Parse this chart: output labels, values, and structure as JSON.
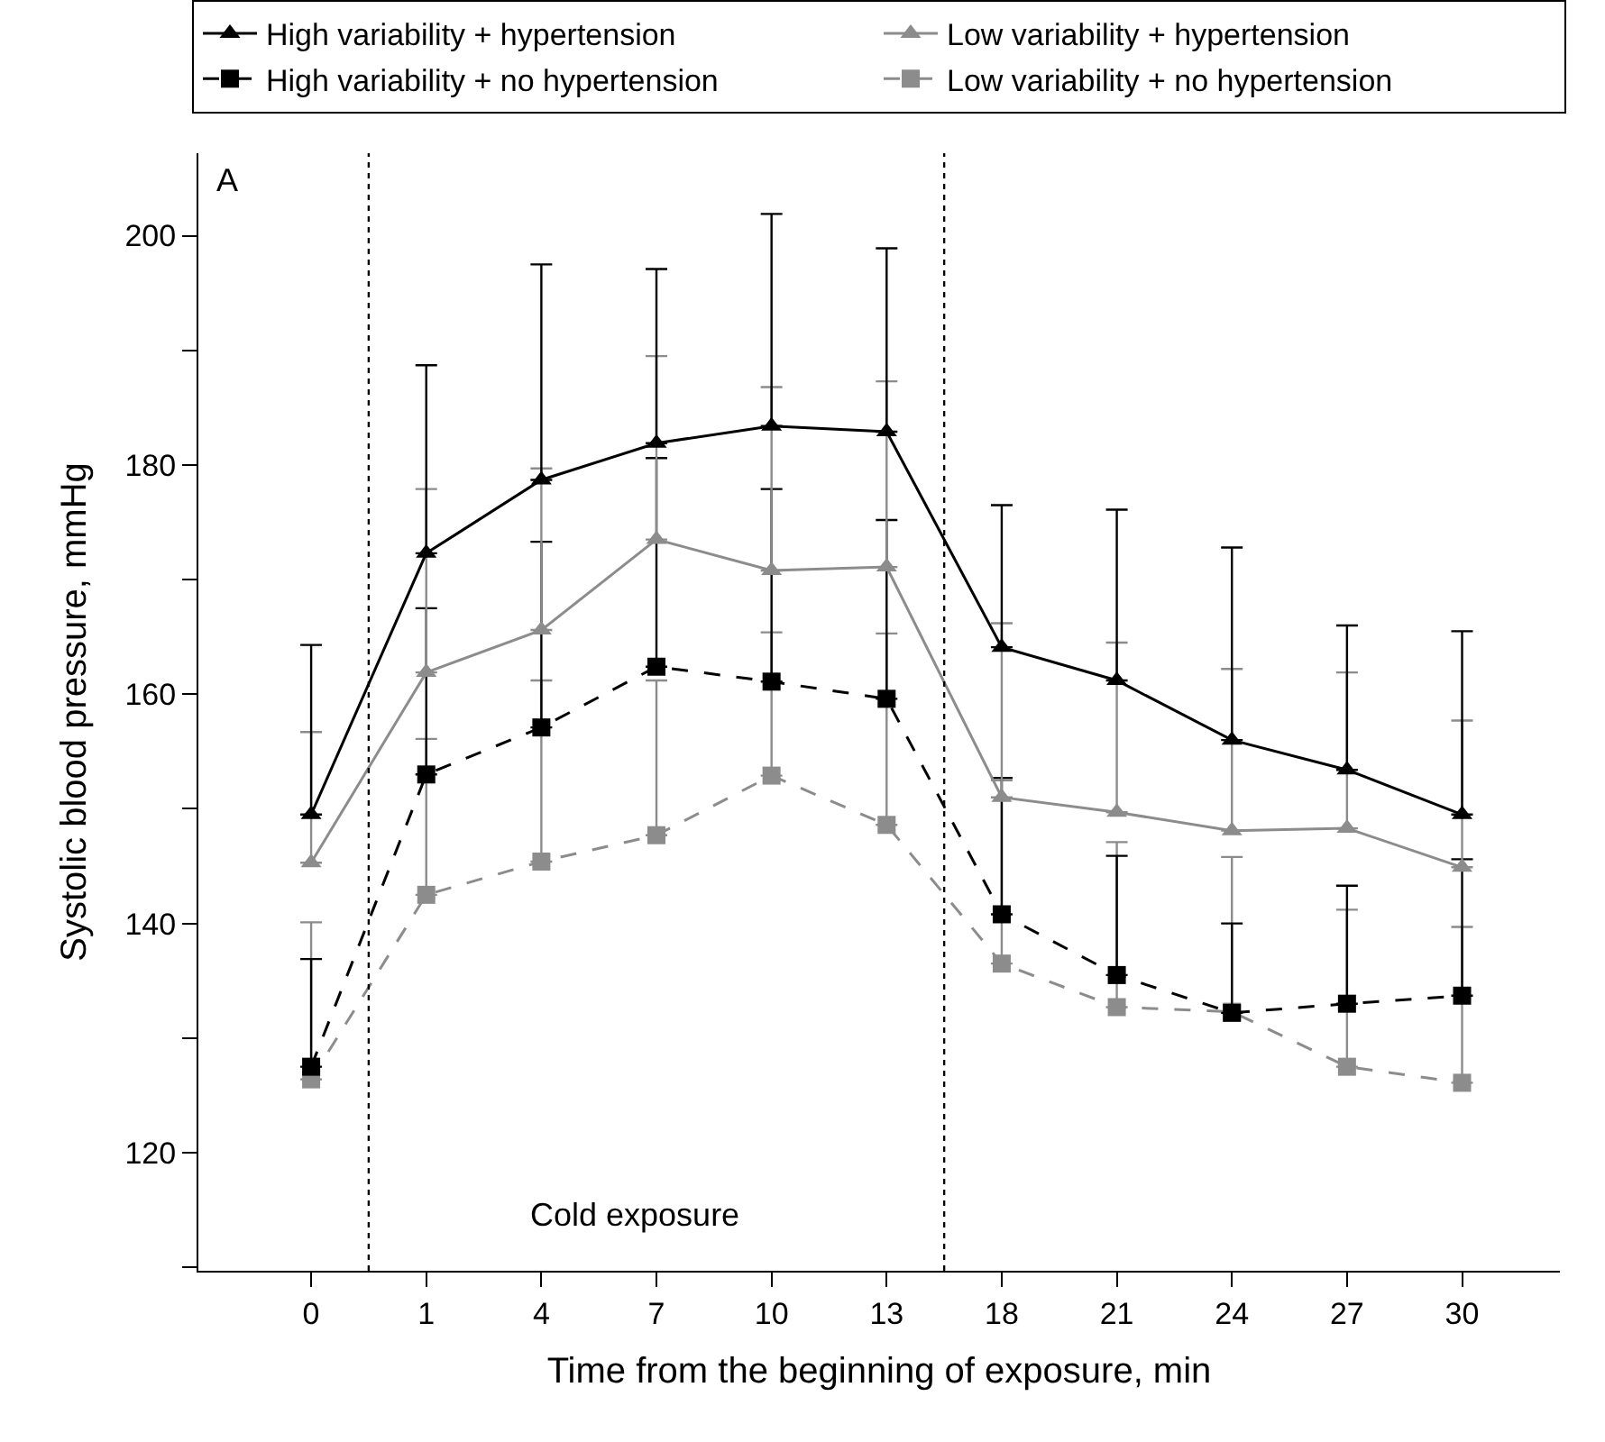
{
  "chart_data": {
    "type": "line",
    "xlabel": "Time from the beginning of exposure, min",
    "ylabel": "Systolic blood pressure, mmHg",
    "categories": [
      "0",
      "1",
      "4",
      "7",
      "10",
      "13",
      "18",
      "21",
      "24",
      "27",
      "30"
    ],
    "ylim": [
      109.7,
      207.2
    ],
    "yticks": [
      {
        "value": 110,
        "label": null
      },
      120,
      {
        "value": 130,
        "label": null
      },
      140,
      {
        "value": 150,
        "label": null
      },
      160,
      {
        "value": 170,
        "label": null
      },
      180,
      {
        "value": 190,
        "label": null
      },
      200
    ],
    "series": [
      {
        "name": "High variability + hypertension",
        "color": "#000000",
        "marker": "triangle",
        "line_style": "solid",
        "values": [
          149.5,
          172.3,
          178.7,
          181.9,
          183.4,
          182.9,
          164.1,
          161.2,
          156.0,
          153.4,
          149.5
        ],
        "errors": [
          [
            149.5,
            164.3
          ],
          [
            172.3,
            188.7
          ],
          [
            178.7,
            197.5
          ],
          [
            181.9,
            197.1
          ],
          [
            183.4,
            201.9
          ],
          [
            182.9,
            198.9
          ],
          [
            164.1,
            176.5
          ],
          [
            161.2,
            176.1
          ],
          [
            156.0,
            172.8
          ],
          [
            153.4,
            166.0
          ],
          [
            149.5,
            165.5
          ]
        ]
      },
      {
        "name": "Low variability + hypertension",
        "color": "#8c8c8c",
        "marker": "triangle",
        "line_style": "solid",
        "values": [
          145.3,
          161.9,
          165.6,
          173.5,
          170.8,
          171.1,
          151.0,
          149.7,
          148.1,
          148.3,
          144.9
        ],
        "errors": [
          [
            145.3,
            156.7
          ],
          [
            161.9,
            177.9
          ],
          [
            165.6,
            179.7
          ],
          [
            173.5,
            189.5
          ],
          [
            170.8,
            186.8
          ],
          [
            171.1,
            187.3
          ],
          [
            151.0,
            166.2
          ],
          [
            149.7,
            164.5
          ],
          [
            148.1,
            162.2
          ],
          [
            148.3,
            161.9
          ],
          [
            144.9,
            157.7
          ]
        ]
      },
      {
        "name": "High variability + no hypertension",
        "color": "#000000",
        "marker": "square",
        "line_style": "dashed",
        "values": [
          127.5,
          153.0,
          157.1,
          162.4,
          161.1,
          159.6,
          140.8,
          135.5,
          132.2,
          133.0,
          133.7
        ],
        "errors": [
          [
            127.5,
            136.9
          ],
          [
            153.0,
            167.5
          ],
          [
            157.1,
            173.3
          ],
          [
            162.4,
            180.6
          ],
          [
            161.1,
            177.9
          ],
          [
            159.6,
            175.2
          ],
          [
            140.8,
            152.7
          ],
          [
            135.5,
            145.9
          ],
          [
            132.2,
            140.0
          ],
          [
            133.0,
            143.3
          ],
          [
            133.7,
            145.6
          ]
        ]
      },
      {
        "name": "Low variability + no hypertension",
        "color": "#8c8c8c",
        "marker": "square",
        "line_style": "dashed",
        "values": [
          126.4,
          142.5,
          145.4,
          147.7,
          152.9,
          148.6,
          136.5,
          132.7,
          132.3,
          127.5,
          126.1
        ],
        "errors": [
          [
            126.4,
            140.1
          ],
          [
            142.5,
            156.1
          ],
          [
            145.4,
            161.2
          ],
          [
            147.7,
            161.2
          ],
          [
            152.9,
            165.4
          ],
          [
            148.6,
            165.3
          ],
          [
            136.5,
            152.5
          ],
          [
            132.7,
            147.1
          ],
          [
            132.3,
            145.8
          ],
          [
            127.5,
            141.2
          ],
          [
            126.1,
            139.7
          ]
        ]
      }
    ],
    "annotations": [
      "A",
      "Cold exposure"
    ],
    "legend": "top"
  }
}
